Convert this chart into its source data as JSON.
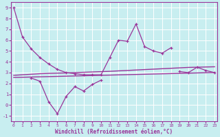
{
  "x": [
    0,
    1,
    2,
    3,
    4,
    5,
    6,
    7,
    8,
    9,
    10,
    11,
    12,
    13,
    14,
    15,
    16,
    17,
    18,
    19,
    20,
    21,
    22,
    23
  ],
  "line_upper": [
    9.0,
    6.3,
    5.2,
    4.4,
    3.8,
    3.3,
    3.0,
    2.9,
    2.8,
    2.8,
    2.8,
    4.4,
    6.0,
    5.9,
    7.5,
    5.4,
    5.0,
    4.8,
    5.3,
    null,
    null,
    null,
    null,
    null
  ],
  "line_lower": [
    null,
    null,
    2.5,
    2.2,
    0.3,
    -0.8,
    0.8,
    1.7,
    1.3,
    1.9,
    2.3,
    null,
    null,
    null,
    null,
    null,
    null,
    null,
    null,
    3.1,
    3.0,
    3.5,
    3.2,
    3.0
  ],
  "line_trend_upper": [
    2.75,
    2.8,
    2.85,
    2.9,
    2.93,
    2.95,
    2.97,
    3.0,
    3.03,
    3.06,
    3.09,
    3.12,
    3.16,
    3.2,
    3.24,
    3.28,
    3.32,
    3.36,
    3.4,
    3.44,
    3.48,
    3.5,
    3.52,
    3.54
  ],
  "line_trend_lower": [
    2.55,
    2.57,
    2.59,
    2.61,
    2.63,
    2.65,
    2.67,
    2.69,
    2.71,
    2.73,
    2.75,
    2.77,
    2.79,
    2.81,
    2.83,
    2.85,
    2.87,
    2.89,
    2.91,
    2.93,
    2.95,
    2.97,
    2.99,
    3.01
  ],
  "color": "#993399",
  "bg_color": "#c8eef0",
  "grid_color": "#b0dde0",
  "xlabel": "Windchill (Refroidissement éolien,°C)",
  "ylim": [
    -1.5,
    9.5
  ],
  "xlim": [
    -0.3,
    23.3
  ],
  "yticks": [
    -1,
    0,
    1,
    2,
    3,
    4,
    5,
    6,
    7,
    8,
    9
  ],
  "xticks": [
    0,
    1,
    2,
    3,
    4,
    5,
    6,
    7,
    8,
    9,
    10,
    11,
    12,
    13,
    14,
    15,
    16,
    17,
    18,
    19,
    20,
    21,
    22,
    23
  ]
}
